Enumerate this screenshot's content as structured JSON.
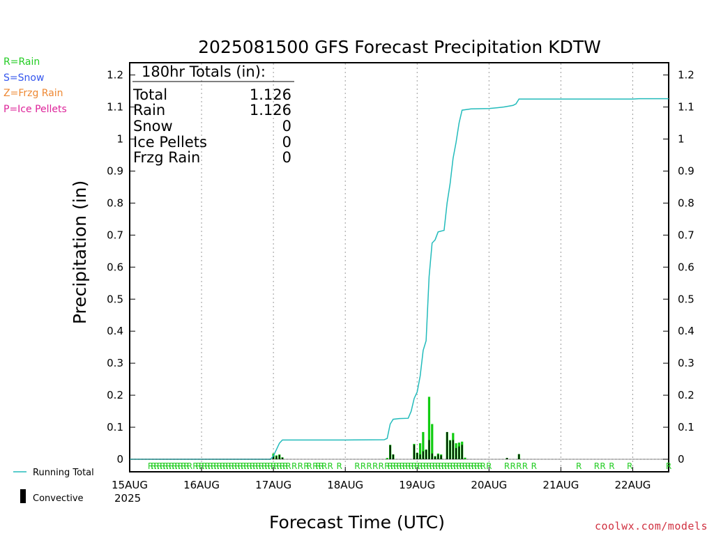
{
  "title": "2025081500 GFS Forecast Precipitation KDTW",
  "type_legend": [
    {
      "label": "R=Rain",
      "color": "#22cc22"
    },
    {
      "label": "S=Snow",
      "color": "#3355ee"
    },
    {
      "label": "Z=Frzg Rain",
      "color": "#ee8833"
    },
    {
      "label": "P=Ice Pellets",
      "color": "#dd2299"
    }
  ],
  "totals": {
    "header": "180hr Totals (in):",
    "rows": [
      {
        "label": "Total",
        "value": "1.126"
      },
      {
        "label": "Rain",
        "value": "1.126"
      },
      {
        "label": "Snow",
        "value": "0"
      },
      {
        "label": "Ice Pellets",
        "value": "0"
      },
      {
        "label": "Frzg Rain",
        "value": "0"
      }
    ]
  },
  "bottom_legend": {
    "running_total": "Running Total",
    "convective": "Convective"
  },
  "credit": "coolwx.com/models",
  "colors": {
    "running_total": "#22bbbb",
    "rain_bar": "#11cc11",
    "convective_bar": "#000000",
    "grid": "#999999"
  },
  "chart_data": {
    "type": "bar",
    "title": "2025081500 GFS Forecast Precipitation KDTW",
    "xlabel": "Forecast Time (UTC)",
    "ylabel": "Precipitation (in)",
    "ylim": [
      0,
      1.25
    ],
    "x_unit": "hours after 2025081500 UTC",
    "xlim": [
      0,
      180
    ],
    "x_ticks": [
      {
        "hour": 0,
        "label": "15AUG",
        "sublabel": "2025"
      },
      {
        "hour": 24,
        "label": "16AUG"
      },
      {
        "hour": 48,
        "label": "17AUG"
      },
      {
        "hour": 72,
        "label": "18AUG"
      },
      {
        "hour": 96,
        "label": "19AUG"
      },
      {
        "hour": 120,
        "label": "20AUG"
      },
      {
        "hour": 144,
        "label": "21AUG"
      },
      {
        "hour": 168,
        "label": "22AUG"
      }
    ],
    "y_ticks": [
      "0",
      "0.1",
      "0.2",
      "0.3",
      "0.4",
      "0.5",
      "0.6",
      "0.7",
      "0.8",
      "0.9",
      "1",
      "1.1",
      "1.2"
    ],
    "grid": "vertical dotted at day boundaries",
    "series": [
      {
        "name": "Running Total",
        "type": "line",
        "points": [
          [
            0,
            0
          ],
          [
            47,
            0
          ],
          [
            48,
            0.01
          ],
          [
            49,
            0.03
          ],
          [
            50,
            0.05
          ],
          [
            51,
            0.06
          ],
          [
            60,
            0.06
          ],
          [
            72,
            0.06
          ],
          [
            85,
            0.061
          ],
          [
            86,
            0.065
          ],
          [
            87,
            0.11
          ],
          [
            88,
            0.125
          ],
          [
            90,
            0.127
          ],
          [
            93,
            0.128
          ],
          [
            94,
            0.15
          ],
          [
            95,
            0.19
          ],
          [
            96,
            0.21
          ],
          [
            97,
            0.26
          ],
          [
            98,
            0.34
          ],
          [
            99,
            0.37
          ],
          [
            100,
            0.57
          ],
          [
            101,
            0.675
          ],
          [
            102,
            0.685
          ],
          [
            103,
            0.71
          ],
          [
            105,
            0.715
          ],
          [
            106,
            0.8
          ],
          [
            107,
            0.86
          ],
          [
            108,
            0.94
          ],
          [
            109,
            0.99
          ],
          [
            110,
            1.05
          ],
          [
            111,
            1.09
          ],
          [
            114,
            1.094
          ],
          [
            120,
            1.095
          ],
          [
            123,
            1.098
          ],
          [
            125,
            1.1
          ],
          [
            128,
            1.105
          ],
          [
            129,
            1.11
          ],
          [
            130,
            1.125
          ],
          [
            138,
            1.125
          ],
          [
            168,
            1.125
          ],
          [
            170,
            1.126
          ],
          [
            180,
            1.126
          ]
        ]
      },
      {
        "name": "Rain",
        "type": "bar",
        "bars": [
          [
            48,
            0.018
          ],
          [
            49,
            0.012
          ],
          [
            50,
            0.015
          ],
          [
            51,
            0.006
          ],
          [
            86,
            0.004
          ],
          [
            87,
            0.045
          ],
          [
            88,
            0.015
          ],
          [
            95,
            0.048
          ],
          [
            96,
            0.02
          ],
          [
            97,
            0.05
          ],
          [
            98,
            0.085
          ],
          [
            99,
            0.03
          ],
          [
            100,
            0.195
          ],
          [
            101,
            0.11
          ],
          [
            102,
            0.01
          ],
          [
            103,
            0.018
          ],
          [
            104,
            0.015
          ],
          [
            106,
            0.085
          ],
          [
            107,
            0.06
          ],
          [
            108,
            0.082
          ],
          [
            109,
            0.05
          ],
          [
            110,
            0.052
          ],
          [
            111,
            0.055
          ],
          [
            112,
            0.005
          ],
          [
            126,
            0.004
          ],
          [
            130,
            0.016
          ]
        ]
      },
      {
        "name": "Convective",
        "type": "bar",
        "bars": [
          [
            48,
            0.012
          ],
          [
            49,
            0.01
          ],
          [
            50,
            0.013
          ],
          [
            51,
            0.005
          ],
          [
            87,
            0.044
          ],
          [
            88,
            0.015
          ],
          [
            95,
            0.045
          ],
          [
            96,
            0.02
          ],
          [
            97,
            0.015
          ],
          [
            98,
            0.025
          ],
          [
            99,
            0.03
          ],
          [
            100,
            0.06
          ],
          [
            101,
            0.018
          ],
          [
            102,
            0.008
          ],
          [
            103,
            0.015
          ],
          [
            104,
            0.012
          ],
          [
            106,
            0.085
          ],
          [
            107,
            0.058
          ],
          [
            108,
            0.06
          ],
          [
            109,
            0.035
          ],
          [
            110,
            0.04
          ],
          [
            111,
            0.045
          ],
          [
            126,
            0.004
          ],
          [
            130,
            0.016
          ]
        ]
      }
    ],
    "precip_type_markers": {
      "symbol": "R",
      "hours": [
        7,
        8,
        9,
        10,
        11,
        12,
        13,
        14,
        15,
        16,
        17,
        18,
        19,
        20,
        22,
        23,
        24,
        25,
        26,
        27,
        28,
        29,
        30,
        31,
        32,
        33,
        34,
        35,
        36,
        37,
        38,
        39,
        40,
        41,
        42,
        43,
        44,
        45,
        46,
        47,
        48,
        49,
        50,
        51,
        52,
        53,
        55,
        57,
        59,
        60,
        62,
        63,
        64,
        65,
        67,
        70,
        76,
        78,
        80,
        82,
        84,
        86,
        87,
        88,
        89,
        90,
        91,
        92,
        93,
        94,
        95,
        96,
        97,
        98,
        99,
        100,
        101,
        102,
        103,
        104,
        105,
        106,
        107,
        108,
        109,
        110,
        111,
        112,
        113,
        114,
        115,
        116,
        117,
        118,
        120,
        126,
        128,
        130,
        132,
        135,
        150,
        156,
        158,
        161,
        167,
        180
      ]
    }
  }
}
